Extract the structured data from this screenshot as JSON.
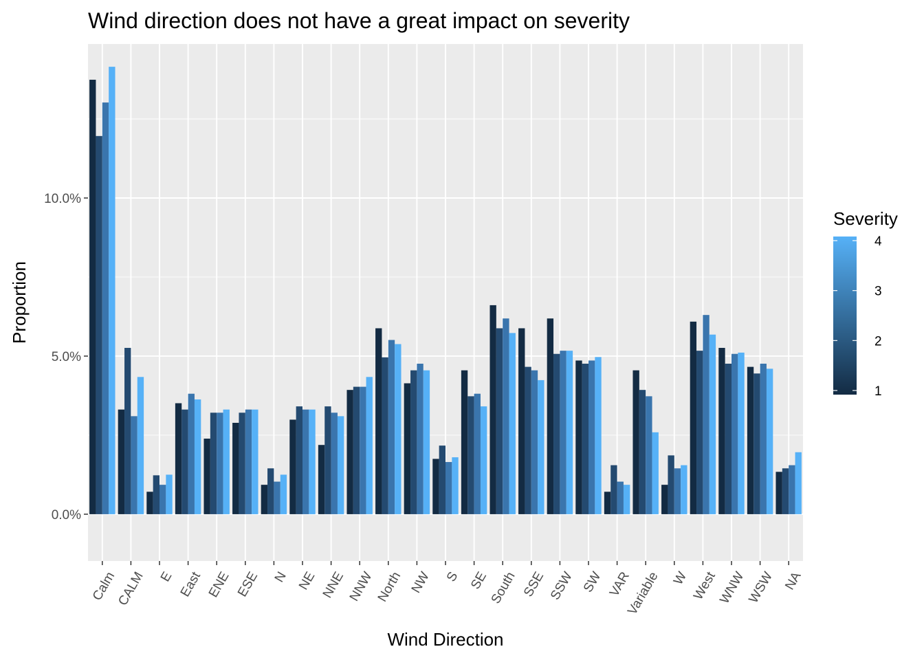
{
  "chart_data": {
    "type": "bar",
    "title": "Wind direction does not have a great impact on severity",
    "xlabel": "Wind Direction",
    "ylabel": "Proportion",
    "ylim": [
      -0.0148,
      0.1487
    ],
    "yticks": [
      0,
      0.05,
      0.1
    ],
    "ytick_labels": [
      "0.0%",
      "5.0%",
      "10.0%"
    ],
    "grid": true,
    "categories": [
      "Calm",
      "CALM",
      "E",
      "East",
      "ENE",
      "ESE",
      "N",
      "NE",
      "NNE",
      "NNW",
      "North",
      "NW",
      "S",
      "SE",
      "South",
      "SSE",
      "SSW",
      "SW",
      "VAR",
      "Variable",
      "W",
      "West",
      "WNW",
      "WSW",
      "NA"
    ],
    "series": [
      {
        "name": "1",
        "color": "#132b43",
        "values": [
          0.1374,
          0.0331,
          0.0071,
          0.0351,
          0.0239,
          0.0289,
          0.0093,
          0.0299,
          0.0219,
          0.0393,
          0.0588,
          0.0414,
          0.0175,
          0.0455,
          0.0661,
          0.0588,
          0.0619,
          0.0486,
          0.0071,
          0.0455,
          0.0093,
          0.0609,
          0.0526,
          0.0466,
          0.0134
        ]
      },
      {
        "name": "2",
        "color": "#244a70",
        "values": [
          0.1196,
          0.0526,
          0.0123,
          0.0331,
          0.0321,
          0.0321,
          0.0145,
          0.0341,
          0.0341,
          0.0403,
          0.0496,
          0.0455,
          0.0217,
          0.0373,
          0.0588,
          0.0466,
          0.0507,
          0.0476,
          0.0155,
          0.0393,
          0.0186,
          0.0517,
          0.0476,
          0.0445,
          0.0145
        ]
      },
      {
        "name": "3",
        "color": "#3a75ad",
        "values": [
          0.1302,
          0.031,
          0.0093,
          0.0381,
          0.0321,
          0.0331,
          0.0103,
          0.0331,
          0.0321,
          0.0403,
          0.0551,
          0.0476,
          0.0165,
          0.0381,
          0.0619,
          0.0455,
          0.0517,
          0.0486,
          0.0103,
          0.0373,
          0.0145,
          0.063,
          0.0507,
          0.0476,
          0.0155
        ]
      },
      {
        "name": "4",
        "color": "#56b1f7",
        "values": [
          0.1415,
          0.0434,
          0.0125,
          0.0363,
          0.0331,
          0.0331,
          0.0125,
          0.0331,
          0.031,
          0.0434,
          0.0538,
          0.0455,
          0.018,
          0.0341,
          0.0573,
          0.0424,
          0.0517,
          0.0497,
          0.0093,
          0.0259,
          0.0155,
          0.0568,
          0.0511,
          0.046,
          0.0196
        ]
      }
    ],
    "legend": {
      "title": "Severity",
      "placement": "right",
      "gradient": [
        "#132b43",
        "#56b1f7"
      ],
      "range": [
        1,
        4
      ],
      "ticks": [
        1,
        2,
        3,
        4
      ]
    }
  }
}
